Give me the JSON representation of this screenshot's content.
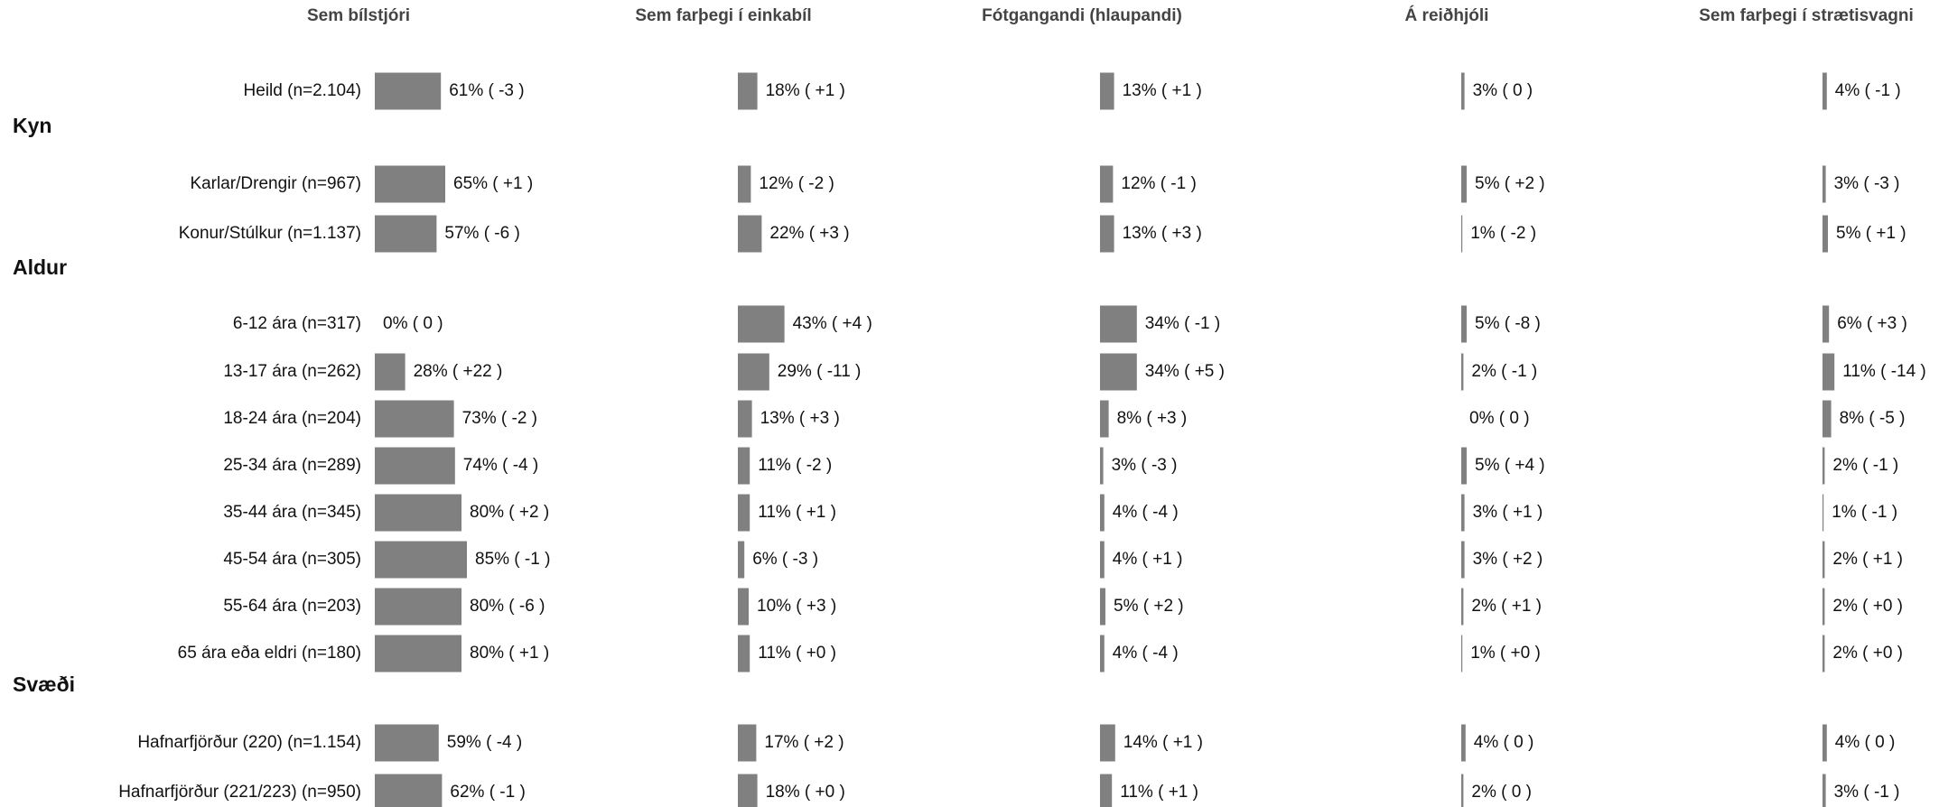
{
  "chart_data": {
    "type": "bar",
    "orientation": "horizontal",
    "color": "#808080",
    "xlim": [
      0,
      100
    ],
    "group_labels": [
      "Kyn",
      "Aldur",
      "Svæði"
    ],
    "categories": [
      "Heild (n=2.104)",
      "Karlar/Drengir (n=967)",
      "Konur/Stúlkur (n=1.137)",
      "6-12 ára (n=317)",
      "13-17 ára (n=262)",
      "18-24 ára (n=204)",
      "25-34 ára (n=289)",
      "35-44 ára (n=345)",
      "45-54 ára (n=305)",
      "55-64 ára (n=203)",
      "65 ára eða eldri (n=180)",
      "Hafnarfjörður (220) (n=1.154)",
      "Hafnarfjörður (221/223) (n=950)"
    ],
    "series": [
      {
        "name": "Sem bílstjóri",
        "values": [
          61,
          65,
          57,
          0,
          28,
          73,
          74,
          80,
          85,
          80,
          80,
          59,
          62
        ],
        "value_labels": [
          "61% ( -3 )",
          "65% ( +1 )",
          "57% ( -6 )",
          "0% ( 0 )",
          "28% ( +22 )",
          "73% ( -2 )",
          "74% ( -4 )",
          "80% ( +2 )",
          "85% ( -1 )",
          "80% ( -6 )",
          "80% ( +1 )",
          "59% ( -4 )",
          "62% ( -1 )"
        ]
      },
      {
        "name": "Sem farþegi í einkabíl",
        "values": [
          18,
          12,
          22,
          43,
          29,
          13,
          11,
          11,
          6,
          10,
          11,
          17,
          18
        ],
        "value_labels": [
          "18% ( +1 )",
          "12% ( -2 )",
          "22% ( +3 )",
          "43% ( +4 )",
          "29% ( -11 )",
          "13% ( +3 )",
          "11% ( -2 )",
          "11% ( +1 )",
          "6% ( -3 )",
          "10% ( +3 )",
          "11% ( +0 )",
          "17% ( +2 )",
          "18% ( +0 )"
        ]
      },
      {
        "name": "Fótgangandi (hlaupandi)",
        "values": [
          13,
          12,
          13,
          34,
          34,
          8,
          3,
          4,
          4,
          5,
          4,
          14,
          11
        ],
        "value_labels": [
          "13% ( +1 )",
          "12% ( -1 )",
          "13% ( +3 )",
          "34% ( -1 )",
          "34% ( +5 )",
          "8% ( +3 )",
          "3% ( -3 )",
          "4% ( -4 )",
          "4% ( +1 )",
          "5% ( +2 )",
          "4% ( -4 )",
          "14% ( +1 )",
          "11% ( +1 )"
        ]
      },
      {
        "name": "Á reiðhjóli",
        "values": [
          3,
          5,
          1,
          5,
          2,
          0,
          5,
          3,
          3,
          2,
          1,
          4,
          2
        ],
        "value_labels": [
          "3% ( 0 )",
          "5% ( +2 )",
          "1% ( -2 )",
          "5% ( -8 )",
          "2% ( -1 )",
          "0% ( 0 )",
          "5% ( +4 )",
          "3% ( +1 )",
          "3% ( +2 )",
          "2% ( +1 )",
          "1% ( +0 )",
          "4% ( 0 )",
          "2% ( 0 )"
        ]
      },
      {
        "name": "Sem farþegi í strætisvagni",
        "values": [
          4,
          3,
          5,
          6,
          11,
          8,
          2,
          1,
          2,
          2,
          2,
          4,
          3
        ],
        "value_labels": [
          "4% ( -1 )",
          "3% ( -3 )",
          "5% ( +1 )",
          "6% ( +3 )",
          "11% ( -14 )",
          "8% ( -5 )",
          "2% ( -1 )",
          "1% ( -1 )",
          "2% ( +1 )",
          "2% ( +0 )",
          "2% ( +0 )",
          "4% ( 0 )",
          "3% ( -1 )"
        ]
      }
    ]
  }
}
